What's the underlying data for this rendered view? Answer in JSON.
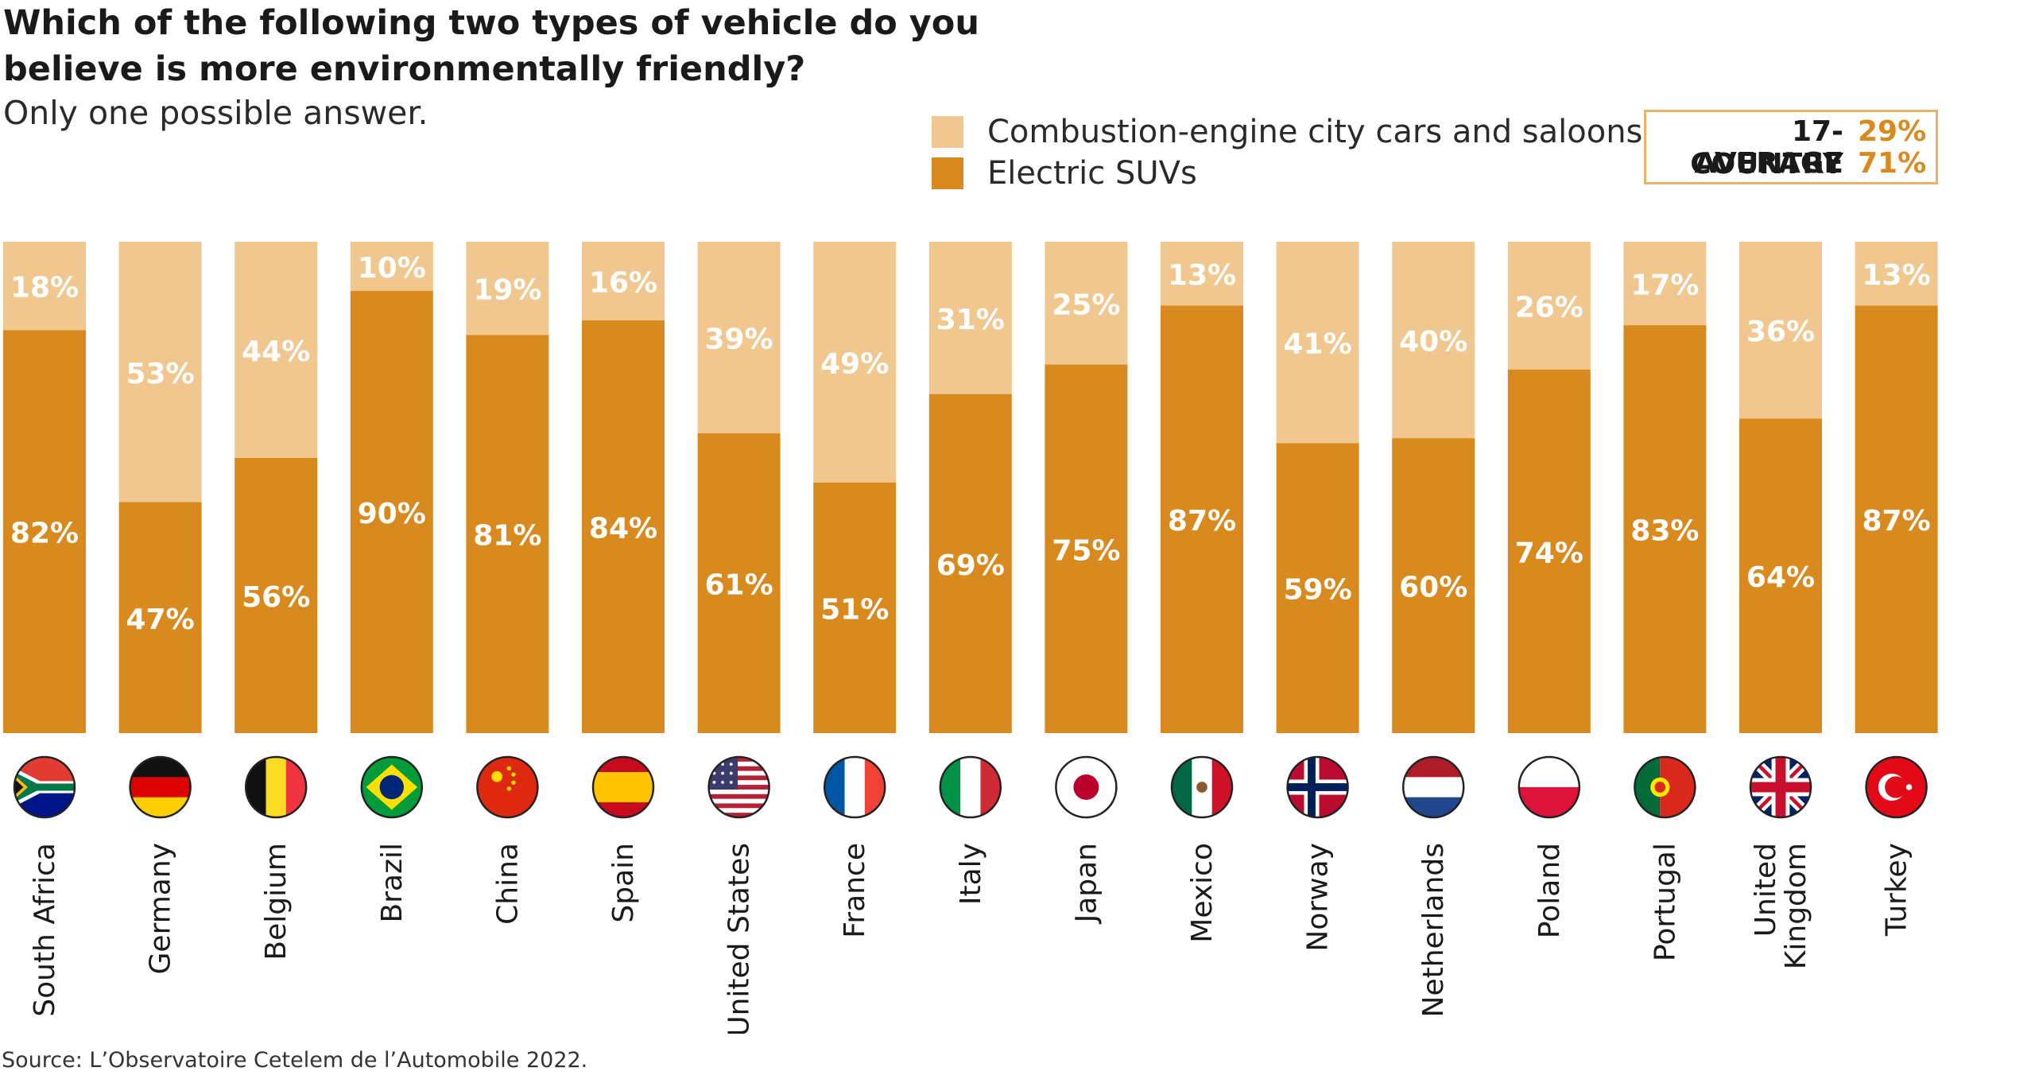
{
  "title": "Which of the following two types of vehicle do you believe is more environmentally friendly?",
  "subtitle": "Only one possible answer.",
  "legend": {
    "combustion": "Combustion-engine city cars and saloons",
    "electric": "Electric SUVs"
  },
  "average": {
    "label_line1": "17-COUNTRY",
    "label_line2": "AVERAGE",
    "combustion": "29%",
    "electric": "71%"
  },
  "source": "Source: L’Observatoire Cetelem de l’Automobile 2022.",
  "colors": {
    "combustion": "#f0c78e",
    "electric": "#d98a1f",
    "label_text": "#ffffff",
    "accent": "#d98a1f"
  },
  "chart_data": {
    "type": "bar",
    "stacked": true,
    "ylim": [
      0,
      100
    ],
    "categories": [
      "South Africa",
      "Germany",
      "Belgium",
      "Brazil",
      "China",
      "Spain",
      "United States",
      "France",
      "Italy",
      "Japan",
      "Mexico",
      "Norway",
      "Netherlands",
      "Poland",
      "Portugal",
      "United Kingdom",
      "Turkey"
    ],
    "category_labels": [
      [
        "South Africa"
      ],
      [
        "Germany"
      ],
      [
        "Belgium"
      ],
      [
        "Brazil"
      ],
      [
        "China"
      ],
      [
        "Spain"
      ],
      [
        "United States"
      ],
      [
        "France"
      ],
      [
        "Italy"
      ],
      [
        "Japan"
      ],
      [
        "Mexico"
      ],
      [
        "Norway"
      ],
      [
        "Netherlands"
      ],
      [
        "Poland"
      ],
      [
        "Portugal"
      ],
      [
        "United",
        "Kingdom"
      ],
      [
        "Turkey"
      ]
    ],
    "flags": [
      "south-africa-flag",
      "germany-flag",
      "belgium-flag",
      "brazil-flag",
      "china-flag",
      "spain-flag",
      "united-states-flag",
      "france-flag",
      "italy-flag",
      "japan-flag",
      "mexico-flag",
      "norway-flag",
      "netherlands-flag",
      "poland-flag",
      "portugal-flag",
      "united-kingdom-flag",
      "turkey-flag"
    ],
    "series": [
      {
        "name": "Electric SUVs",
        "values": [
          82,
          47,
          56,
          90,
          81,
          84,
          61,
          51,
          69,
          75,
          87,
          59,
          60,
          74,
          83,
          64,
          87
        ]
      },
      {
        "name": "Combustion-engine city cars and saloons",
        "values": [
          18,
          53,
          44,
          10,
          19,
          16,
          39,
          49,
          31,
          25,
          13,
          41,
          40,
          26,
          17,
          36,
          13
        ]
      }
    ]
  }
}
